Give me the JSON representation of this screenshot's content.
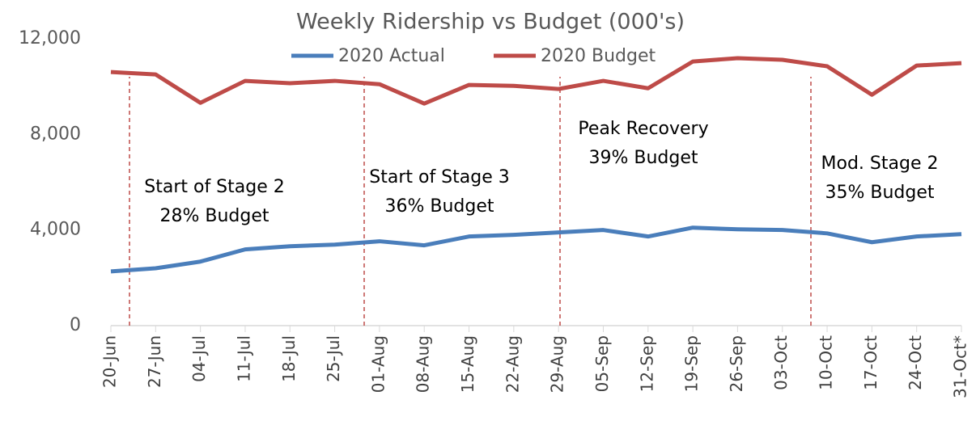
{
  "chart_data": {
    "type": "line",
    "title": "Weekly Ridership vs Budget (000's)",
    "categories": [
      "20-Jun",
      "27-Jun",
      "04-Jul",
      "11-Jul",
      "18-Jul",
      "25-Jul",
      "01-Aug",
      "08-Aug",
      "15-Aug",
      "22-Aug",
      "29-Aug",
      "05-Sep",
      "12-Sep",
      "19-Sep",
      "26-Sep",
      "03-Oct",
      "10-Oct",
      "17-Oct",
      "24-Oct",
      "31-Oct*"
    ],
    "series": [
      {
        "name": "2020 Actual",
        "color": "#4a7ebb",
        "values": [
          2270,
          2400,
          2680,
          3190,
          3320,
          3390,
          3530,
          3360,
          3730,
          3800,
          3900,
          4000,
          3730,
          4100,
          4030,
          4000,
          3860,
          3490,
          3730,
          3830
        ]
      },
      {
        "name": "2020 Budget",
        "color": "#be4b48",
        "values": [
          10610,
          10510,
          9320,
          10240,
          10140,
          10240,
          10100,
          9290,
          10070,
          10030,
          9900,
          10240,
          9930,
          11050,
          11190,
          11120,
          10850,
          9660,
          10880,
          10980
        ]
      }
    ],
    "ylim": [
      0,
      12000
    ],
    "yticks": [
      0,
      {
        "value": 4000,
        "label": "4,000"
      },
      {
        "value": 8000,
        "label": "8,000"
      },
      {
        "value": 12000,
        "label": "12,000"
      }
    ],
    "legend": "top",
    "annotations": [
      [
        "Start of Stage 2",
        "28% Budget"
      ],
      [
        "Start of Stage 3",
        "36% Budget"
      ],
      [
        "Peak Recovery",
        "39% Budget"
      ],
      [
        "Mod. Stage 2",
        "35% Budget"
      ]
    ]
  }
}
